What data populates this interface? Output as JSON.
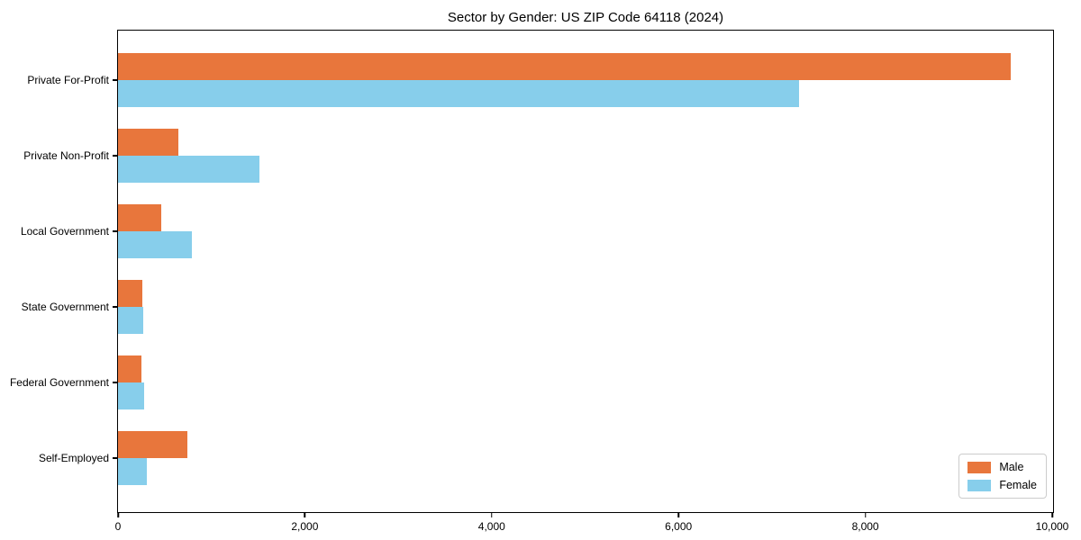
{
  "title": "Sector by Gender: US ZIP Code 64118 (2024)",
  "colors": {
    "male": "#e8763c",
    "female": "#87ceeb",
    "axis": "#000000",
    "legend_border": "#cccccc",
    "background": "#ffffff"
  },
  "legend": {
    "position": "lower right",
    "items": [
      {
        "label": "Male"
      },
      {
        "label": "Female"
      }
    ]
  },
  "chart_data": {
    "type": "bar",
    "orientation": "horizontal",
    "title": "Sector by Gender: US ZIP Code 64118 (2024)",
    "categories": [
      "Private For-Profit",
      "Private Non-Profit",
      "Local Government",
      "State Government",
      "Federal Government",
      "Self-Employed"
    ],
    "series": [
      {
        "name": "Male",
        "color": "#e8763c",
        "values": [
          9560,
          650,
          460,
          260,
          250,
          740
        ]
      },
      {
        "name": "Female",
        "color": "#87ceeb",
        "values": [
          7290,
          1510,
          790,
          270,
          280,
          310
        ]
      }
    ],
    "xlabel": "",
    "ylabel": "",
    "xlim": [
      0,
      10000
    ],
    "xticks": [
      0,
      2000,
      4000,
      6000,
      8000,
      10000
    ],
    "xtick_labels": [
      "0",
      "2,000",
      "4,000",
      "6,000",
      "8,000",
      "10,000"
    ],
    "grid": false,
    "legend_position": "lower right"
  }
}
